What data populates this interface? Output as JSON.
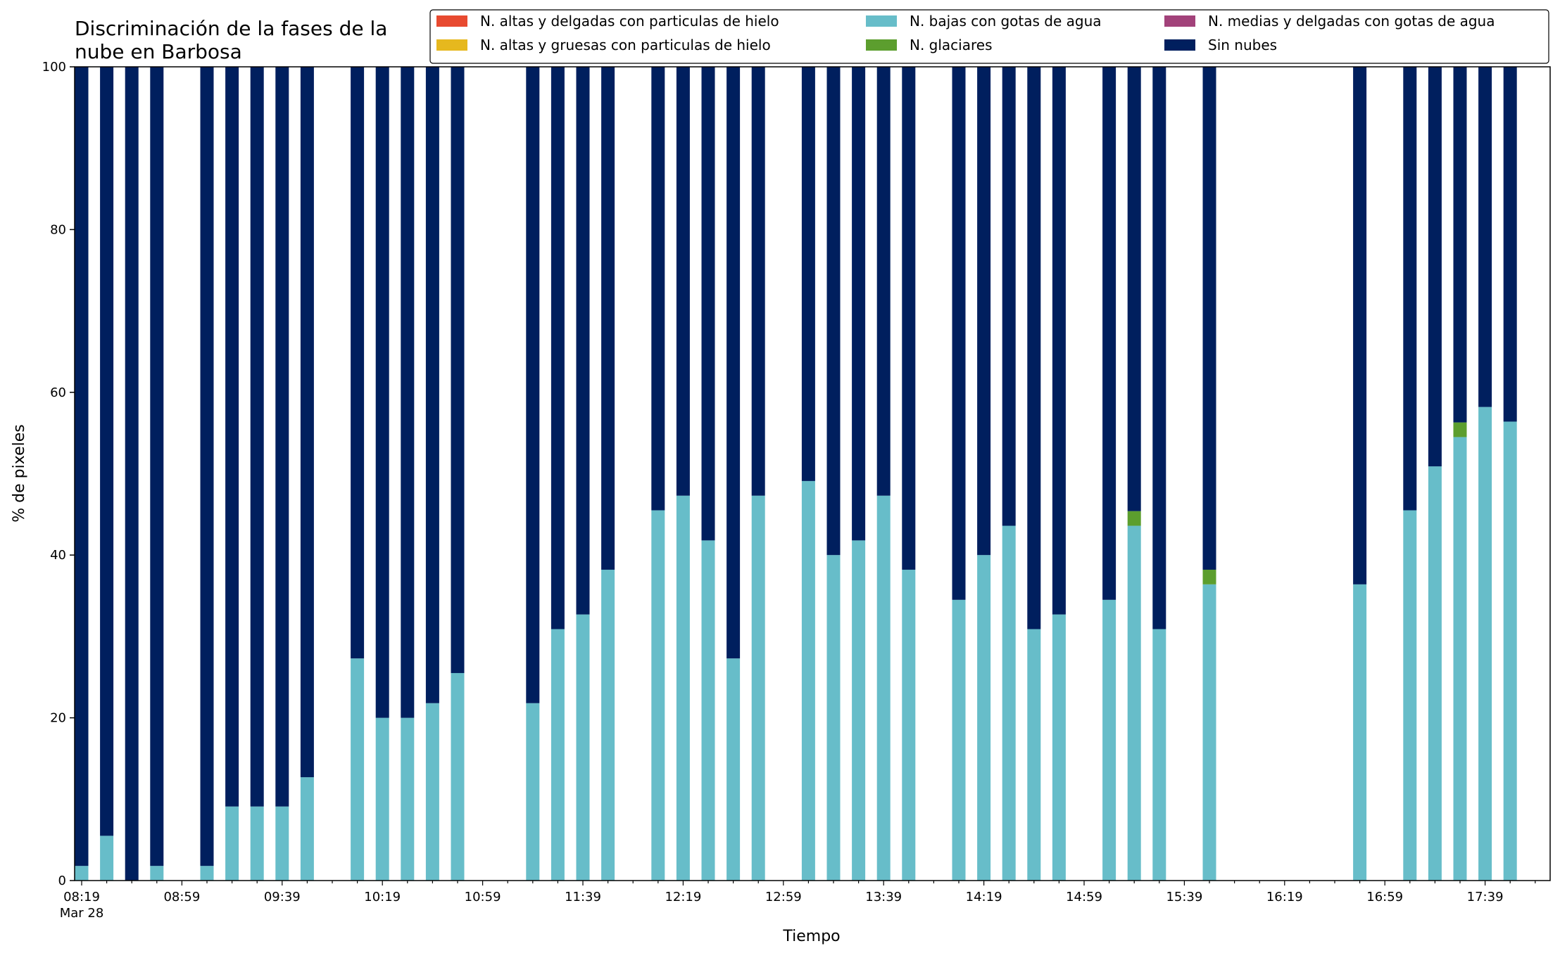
{
  "chart_data": {
    "type": "bar",
    "stacked": true,
    "title_lines": [
      "Discriminación de la fases de la",
      "nube en Barbosa"
    ],
    "xlabel": "Tiempo",
    "ylabel": "% de pixeles",
    "ylim": [
      0,
      100
    ],
    "yticks": [
      0,
      20,
      40,
      60,
      80,
      100
    ],
    "grid": false,
    "legend_position": "top-right",
    "x_start": "08:19",
    "x_end": "17:59",
    "x_step_minutes": 10,
    "xticks_major": [
      "08:19",
      "08:59",
      "09:39",
      "10:19",
      "10:59",
      "11:39",
      "12:19",
      "12:59",
      "13:39",
      "14:19",
      "14:59",
      "15:39",
      "16:19",
      "16:59",
      "17:39"
    ],
    "xtick_date_label": "Mar 28",
    "series": [
      {
        "name": "N. altas y delgadas con particulas de hielo",
        "color": "#e84a30"
      },
      {
        "name": "N. altas y gruesas con particulas de hielo",
        "color": "#e6b81e"
      },
      {
        "name": "N. bajas con gotas de agua",
        "color": "#67bdc9"
      },
      {
        "name": "N. glaciares",
        "color": "#5c9e2e"
      },
      {
        "name": "N. medias y delgadas con gotas de agua",
        "color": "#a2427a"
      },
      {
        "name": "Sin nubes",
        "color": "#001f5e"
      }
    ],
    "bars": [
      {
        "time": "08:19",
        "bajas": 1.8,
        "glaciares": 0
      },
      {
        "time": "08:29",
        "bajas": 5.5,
        "glaciares": 0
      },
      {
        "time": "08:39",
        "bajas": 0,
        "glaciares": 0
      },
      {
        "time": "08:49",
        "bajas": 1.8,
        "glaciares": 0
      },
      {
        "time": "09:09",
        "bajas": 1.8,
        "glaciares": 0
      },
      {
        "time": "09:19",
        "bajas": 9.1,
        "glaciares": 0
      },
      {
        "time": "09:29",
        "bajas": 9.1,
        "glaciares": 0
      },
      {
        "time": "09:39",
        "bajas": 9.1,
        "glaciares": 0
      },
      {
        "time": "09:49",
        "bajas": 12.7,
        "glaciares": 0
      },
      {
        "time": "10:09",
        "bajas": 27.3,
        "glaciares": 0
      },
      {
        "time": "10:19",
        "bajas": 20.0,
        "glaciares": 0
      },
      {
        "time": "10:29",
        "bajas": 20.0,
        "glaciares": 0
      },
      {
        "time": "10:39",
        "bajas": 21.8,
        "glaciares": 0
      },
      {
        "time": "10:49",
        "bajas": 25.5,
        "glaciares": 0
      },
      {
        "time": "11:19",
        "bajas": 21.8,
        "glaciares": 0
      },
      {
        "time": "11:29",
        "bajas": 30.9,
        "glaciares": 0
      },
      {
        "time": "11:39",
        "bajas": 32.7,
        "glaciares": 0
      },
      {
        "time": "11:49",
        "bajas": 38.2,
        "glaciares": 0
      },
      {
        "time": "12:09",
        "bajas": 45.5,
        "glaciares": 0
      },
      {
        "time": "12:19",
        "bajas": 47.3,
        "glaciares": 0
      },
      {
        "time": "12:29",
        "bajas": 41.8,
        "glaciares": 0
      },
      {
        "time": "12:39",
        "bajas": 27.3,
        "glaciares": 0
      },
      {
        "time": "12:49",
        "bajas": 47.3,
        "glaciares": 0
      },
      {
        "time": "13:09",
        "bajas": 49.1,
        "glaciares": 0
      },
      {
        "time": "13:19",
        "bajas": 40.0,
        "glaciares": 0
      },
      {
        "time": "13:29",
        "bajas": 41.8,
        "glaciares": 0
      },
      {
        "time": "13:39",
        "bajas": 47.3,
        "glaciares": 0
      },
      {
        "time": "13:49",
        "bajas": 38.2,
        "glaciares": 0
      },
      {
        "time": "14:09",
        "bajas": 34.5,
        "glaciares": 0
      },
      {
        "time": "14:19",
        "bajas": 40.0,
        "glaciares": 0
      },
      {
        "time": "14:29",
        "bajas": 43.6,
        "glaciares": 0
      },
      {
        "time": "14:39",
        "bajas": 30.9,
        "glaciares": 0
      },
      {
        "time": "14:49",
        "bajas": 32.7,
        "glaciares": 0
      },
      {
        "time": "15:09",
        "bajas": 34.5,
        "glaciares": 0
      },
      {
        "time": "15:19",
        "bajas": 43.6,
        "glaciares": 1.8
      },
      {
        "time": "15:29",
        "bajas": 30.9,
        "glaciares": 0
      },
      {
        "time": "15:49",
        "bajas": 36.4,
        "glaciares": 1.8
      },
      {
        "time": "16:49",
        "bajas": 36.4,
        "glaciares": 0
      },
      {
        "time": "17:09",
        "bajas": 45.5,
        "glaciares": 0
      },
      {
        "time": "17:19",
        "bajas": 50.9,
        "glaciares": 0
      },
      {
        "time": "17:29",
        "bajas": 54.5,
        "glaciares": 1.8
      },
      {
        "time": "17:39",
        "bajas": 58.2,
        "glaciares": 0
      },
      {
        "time": "17:49",
        "bajas": 56.4,
        "glaciares": 0
      }
    ]
  }
}
